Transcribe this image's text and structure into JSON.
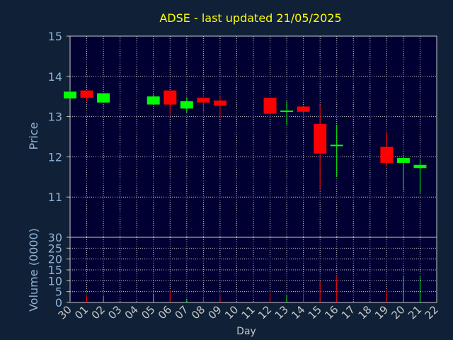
{
  "chart_data": [
    {
      "type": "candlestick",
      "title": "ADSE - last updated 21/05/2025",
      "ylabel": "Price",
      "ylim": [
        10.0,
        15.0
      ],
      "yticks": [
        11,
        12,
        13,
        14,
        15
      ],
      "grid": true,
      "up_color": "#00ff00",
      "down_color": "#ff0000",
      "candles": [
        {
          "day": "30",
          "open": 13.45,
          "high": 13.65,
          "low": 13.45,
          "close": 13.62
        },
        {
          "day": "01",
          "open": 13.65,
          "high": 13.65,
          "low": 13.38,
          "close": 13.47
        },
        {
          "day": "02",
          "open": 13.35,
          "high": 13.58,
          "low": 13.35,
          "close": 13.58
        },
        {
          "day": "05",
          "open": 13.3,
          "high": 13.55,
          "low": 13.3,
          "close": 13.5
        },
        {
          "day": "06",
          "open": 13.65,
          "high": 13.65,
          "low": 13.05,
          "close": 13.3
        },
        {
          "day": "07",
          "open": 13.2,
          "high": 13.48,
          "low": 13.1,
          "close": 13.38
        },
        {
          "day": "08",
          "open": 13.47,
          "high": 13.47,
          "low": 13.15,
          "close": 13.35
        },
        {
          "day": "09",
          "open": 13.4,
          "high": 13.5,
          "low": 12.95,
          "close": 13.27
        },
        {
          "day": "12",
          "open": 13.47,
          "high": 13.47,
          "low": 13.05,
          "close": 13.07
        },
        {
          "day": "13",
          "open": 13.15,
          "high": 13.38,
          "low": 12.8,
          "close": 13.15
        },
        {
          "day": "14",
          "open": 13.25,
          "high": 13.25,
          "low": 13.05,
          "close": 13.12
        },
        {
          "day": "15",
          "open": 12.82,
          "high": 13.3,
          "low": 11.18,
          "close": 12.08
        },
        {
          "day": "16",
          "open": 12.3,
          "high": 12.8,
          "low": 11.5,
          "close": 12.3
        },
        {
          "day": "19",
          "open": 12.25,
          "high": 12.62,
          "low": 11.75,
          "close": 11.85
        },
        {
          "day": "20",
          "open": 11.85,
          "high": 12.0,
          "low": 11.2,
          "close": 11.97
        },
        {
          "day": "21",
          "open": 11.72,
          "high": 11.95,
          "low": 11.1,
          "close": 11.8
        }
      ]
    },
    {
      "type": "bar",
      "ylabel": "Volume (0000)",
      "xlabel": "Day",
      "ylim": [
        0,
        30
      ],
      "yticks": [
        0,
        5,
        10,
        15,
        20,
        25,
        30
      ],
      "grid": true,
      "categories": [
        "30",
        "01",
        "02",
        "03",
        "04",
        "05",
        "06",
        "07",
        "08",
        "09",
        "10",
        "11",
        "12",
        "13",
        "14",
        "15",
        "16",
        "17",
        "18",
        "19",
        "20",
        "21",
        "22"
      ],
      "values": [
        0.5,
        3,
        3,
        0,
        0,
        4,
        5.5,
        1.5,
        2,
        3,
        0,
        0,
        4.5,
        3.5,
        4,
        10,
        12,
        0,
        0,
        5.5,
        12,
        12,
        0
      ],
      "colors": [
        "#00ff00",
        "#ff0000",
        "#00ff00",
        "#00ff00",
        "#00ff00",
        "#00ff00",
        "#ff0000",
        "#00ff00",
        "#ff0000",
        "#ff0000",
        "#00ff00",
        "#00ff00",
        "#ff0000",
        "#00ff00",
        "#ff0000",
        "#ff0000",
        "#ff0000",
        "#00ff00",
        "#00ff00",
        "#ff0000",
        "#00ff00",
        "#00ff00",
        "#00ff00"
      ]
    }
  ],
  "colors": {
    "background": "#102036",
    "plot_background": "#000033",
    "grid": "#c8c8c8",
    "axis_text": "#8fb3d6",
    "title_text": "#ffff00",
    "day_label_text": "#c8c8c8"
  }
}
